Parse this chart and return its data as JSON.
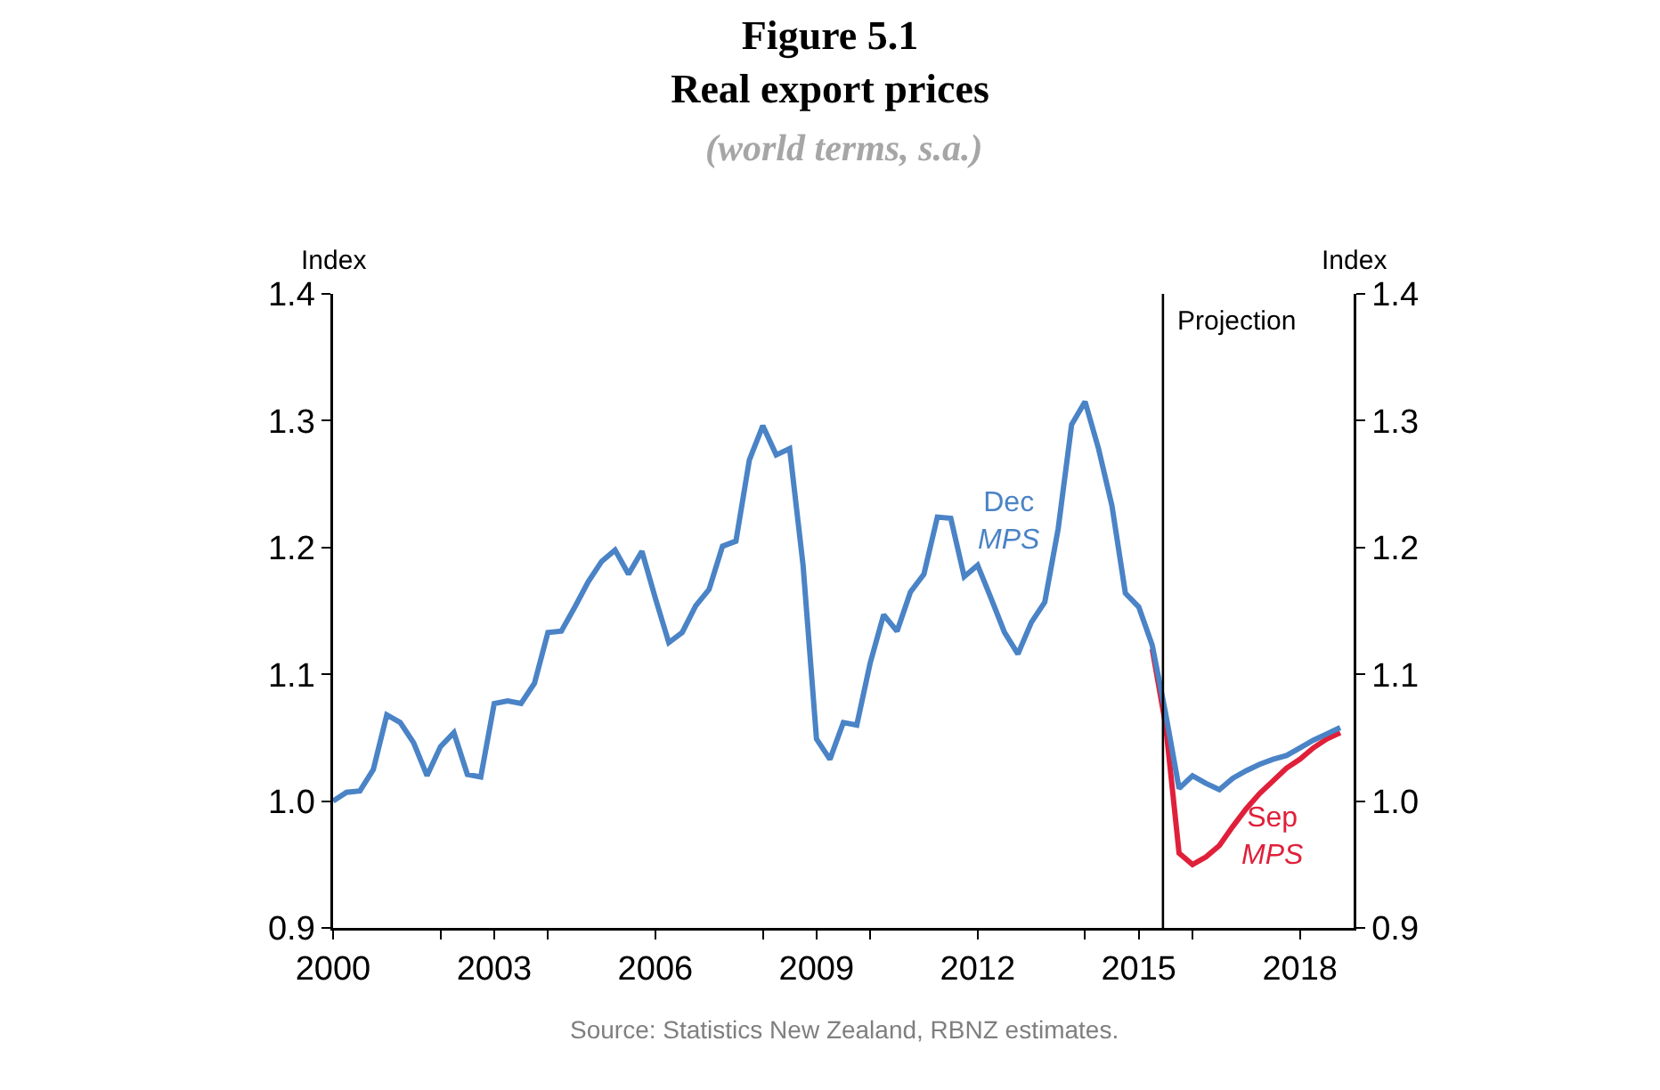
{
  "chart_data": {
    "type": "line",
    "title": "Figure 5.1\nReal export prices",
    "subtitle": "(world terms, s.a.)",
    "ylabel": "Index",
    "y2label": "Index",
    "x": [
      2000,
      2000.25,
      2000.5,
      2000.75,
      2001,
      2001.25,
      2001.5,
      2001.75,
      2002,
      2002.25,
      2002.5,
      2002.75,
      2003,
      2003.25,
      2003.5,
      2003.75,
      2004,
      2004.25,
      2004.5,
      2004.75,
      2005,
      2005.25,
      2005.5,
      2005.75,
      2006,
      2006.25,
      2006.5,
      2006.75,
      2007,
      2007.25,
      2007.5,
      2007.75,
      2008,
      2008.25,
      2008.5,
      2008.75,
      2009,
      2009.25,
      2009.5,
      2009.75,
      2010,
      2010.25,
      2010.5,
      2010.75,
      2011,
      2011.25,
      2011.5,
      2011.75,
      2012,
      2012.25,
      2012.5,
      2012.75,
      2013,
      2013.25,
      2013.5,
      2013.75,
      2014,
      2014.25,
      2014.5,
      2014.75,
      2015,
      2015.25,
      2015.5,
      2015.75,
      2016,
      2016.25,
      2016.5,
      2016.75,
      2017,
      2017.25,
      2017.5,
      2017.75,
      2018,
      2018.25,
      2018.5,
      2018.75
    ],
    "series": [
      {
        "name": "Sep MPS",
        "color": "#e0203a",
        "x": [
          2015.25,
          2015.5,
          2015.75,
          2016,
          2016.25,
          2016.5,
          2016.75,
          2017,
          2017.25,
          2017.5,
          2017.75,
          2018,
          2018.25,
          2018.5,
          2018.75
        ],
        "values": [
          1.12,
          1.06,
          0.959,
          0.95,
          0.956,
          0.965,
          0.98,
          0.994,
          1.006,
          1.016,
          1.026,
          1.033,
          1.042,
          1.049,
          1.054
        ]
      },
      {
        "name": "Dec MPS",
        "color": "#4a83c6",
        "values": [
          1.0,
          1.007,
          1.008,
          1.025,
          1.068,
          1.062,
          1.046,
          1.02,
          1.043,
          1.054,
          1.021,
          1.019,
          1.077,
          1.079,
          1.077,
          1.093,
          1.133,
          1.134,
          1.153,
          1.173,
          1.189,
          1.198,
          1.179,
          1.197,
          1.16,
          1.125,
          1.133,
          1.154,
          1.167,
          1.201,
          1.205,
          1.269,
          1.296,
          1.273,
          1.278,
          1.186,
          1.049,
          1.033,
          1.062,
          1.06,
          1.109,
          1.147,
          1.134,
          1.165,
          1.179,
          1.224,
          1.223,
          1.177,
          1.186,
          1.16,
          1.133,
          1.116,
          1.141,
          1.157,
          1.215,
          1.297,
          1.315,
          1.278,
          1.233,
          1.164,
          1.153,
          1.123,
          1.069,
          1.01,
          1.02,
          1.014,
          1.009,
          1.018,
          1.024,
          1.029,
          1.033,
          1.036,
          1.042,
          1.048,
          1.053,
          1.058
        ]
      }
    ],
    "xlim": [
      2000,
      2019
    ],
    "xticks": [
      2000,
      {
        "value": 2002,
        "label": null
      },
      2003,
      {
        "value": 2004,
        "label": null
      },
      2006,
      {
        "value": 2008,
        "label": null
      },
      2009,
      {
        "value": 2010,
        "label": null
      },
      2012,
      {
        "value": 2014,
        "label": null
      },
      2015,
      {
        "value": 2016,
        "label": null
      },
      2018
    ],
    "ylim": [
      0.9,
      1.4
    ],
    "yticks": [
      0.9,
      {
        "value": 1,
        "label": "1.0"
      },
      1.1,
      1.2,
      1.3,
      1.4
    ],
    "y2lim": [
      0.9,
      1.4
    ],
    "y2ticks": [
      0.9,
      {
        "value": 1,
        "label": "1.0"
      },
      1.1,
      1.2,
      1.3,
      1.4
    ],
    "ref_lines": [
      {
        "axis": "x",
        "value": 2015.45,
        "label": "Projection",
        "color": "#000000"
      }
    ],
    "annotations": [
      "Source: Statistics New Zealand, RBNZ estimates."
    ],
    "grid": false,
    "legend": false,
    "marker": "none",
    "line_style": "solid"
  }
}
